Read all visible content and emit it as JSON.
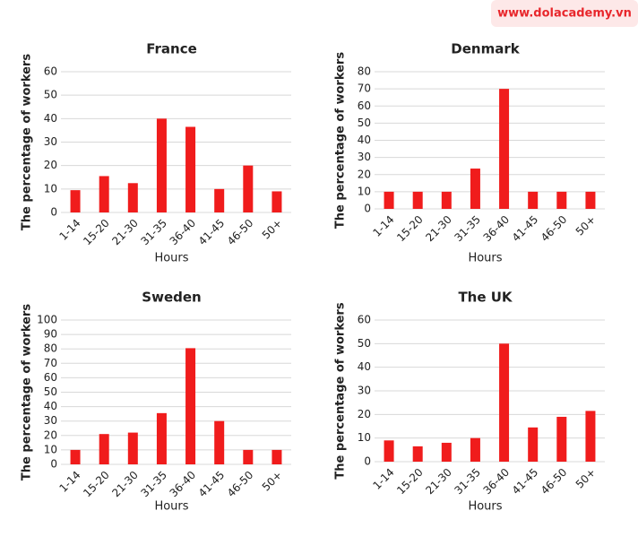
{
  "header": {
    "site": "www.dolacademy.vn"
  },
  "chart_data": [
    {
      "type": "bar",
      "title": "France",
      "x_label": "Hours",
      "y_label": "The percentage of workers",
      "categories": [
        "1-14",
        "15-20",
        "21-30",
        "31-35",
        "36-40",
        "41-45",
        "46-50",
        "50+"
      ],
      "values": [
        9.5,
        15.5,
        12.5,
        40,
        36.5,
        10,
        20,
        9
      ],
      "color": "#f01c1c",
      "ylim": [
        0,
        60
      ],
      "yticks": [
        0,
        10,
        20,
        30,
        40,
        50,
        60
      ],
      "grid": true
    },
    {
      "type": "bar",
      "title": "Denmark",
      "x_label": "Hours",
      "y_label": "The percentage of workers",
      "categories": [
        "1-14",
        "15-20",
        "21-30",
        "31-35",
        "36-40",
        "41-45",
        "46-50",
        "50+"
      ],
      "values": [
        10,
        10,
        10,
        23.5,
        70,
        10,
        10,
        10
      ],
      "color": "#f01c1c",
      "ylim": [
        0,
        80
      ],
      "yticks": [
        0,
        10,
        20,
        30,
        40,
        50,
        60,
        70,
        80
      ],
      "grid": true
    },
    {
      "type": "bar",
      "title": "Sweden",
      "x_label": "Hours",
      "y_label": "The percentage of workers",
      "categories": [
        "1-14",
        "15-20",
        "21-30",
        "31-35",
        "36-40",
        "41-45",
        "46-50",
        "50+"
      ],
      "values": [
        10,
        21,
        22,
        35.5,
        80.5,
        30,
        10,
        10
      ],
      "color": "#f01c1c",
      "ylim": [
        0,
        100
      ],
      "yticks": [
        0,
        10,
        20,
        30,
        40,
        50,
        60,
        70,
        80,
        90,
        100
      ],
      "grid": true
    },
    {
      "type": "bar",
      "title": "The UK",
      "x_label": "Hours",
      "y_label": "The percentage of workers",
      "categories": [
        "1-14",
        "15-20",
        "21-30",
        "31-35",
        "36-40",
        "41-45",
        "46-50",
        "50+"
      ],
      "values": [
        9,
        6.5,
        8,
        10,
        50,
        14.5,
        19,
        21.5
      ],
      "color": "#f01c1c",
      "ylim": [
        0,
        60
      ],
      "yticks": [
        0,
        10,
        20,
        30,
        40,
        50,
        60
      ],
      "grid": true
    }
  ]
}
